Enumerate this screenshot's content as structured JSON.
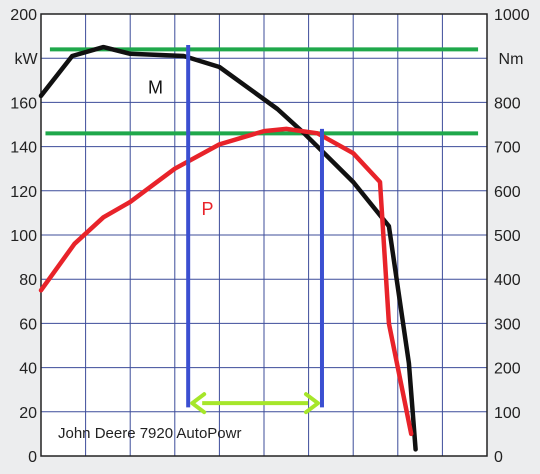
{
  "chart_data": {
    "type": "line",
    "axes": {
      "left": {
        "unit": "kW",
        "min": 0,
        "max": 200,
        "ticks": [
          0,
          20,
          40,
          60,
          80,
          100,
          120,
          140,
          160,
          200
        ]
      },
      "right": {
        "unit": "Nm",
        "min": 0,
        "max": 1000,
        "ticks": [
          0,
          100,
          200,
          300,
          400,
          500,
          600,
          700,
          800,
          1000
        ]
      }
    },
    "grid": true,
    "x_divisions": 10,
    "series": [
      {
        "name": "M",
        "axis": "right",
        "color": "#111111",
        "x": [
          0,
          0.7,
          1.4,
          2.0,
          3.2,
          4.0,
          5.3,
          5.9,
          7.0,
          7.8,
          8.25,
          8.4
        ],
        "values": [
          815,
          905,
          925,
          910,
          905,
          880,
          785,
          730,
          620,
          520,
          210,
          15
        ]
      },
      {
        "name": "P",
        "axis": "left",
        "color": "#e8232a",
        "x": [
          0,
          0.75,
          1.4,
          2.0,
          3.0,
          4.0,
          5.0,
          5.5,
          6.2,
          7.0,
          7.6,
          7.8,
          8.3
        ],
        "values": [
          75,
          96,
          108,
          115,
          130,
          141,
          147,
          148,
          146,
          137,
          124,
          60,
          10
        ]
      }
    ],
    "reference_lines": [
      {
        "color": "#1fa84b",
        "axis": "left",
        "value": 184,
        "x_from": 0.2,
        "x_to": 9.8
      },
      {
        "color": "#1fa84b",
        "axis": "left",
        "value": 146,
        "x_from": 0.1,
        "x_to": 9.8
      }
    ],
    "markers": [
      {
        "color": "#3b4fd1",
        "x": 3.3,
        "from_value": 22,
        "to_value": 186
      },
      {
        "color": "#3b4fd1",
        "x": 6.3,
        "from_value": 22,
        "to_value": 148
      }
    ],
    "range_arrow": {
      "color": "#a6e62a",
      "x_from": 3.3,
      "x_to": 6.3,
      "value": 23
    },
    "annotations": [
      {
        "text": "M",
        "color": "#111111",
        "x": 2.4,
        "value": 164
      },
      {
        "text": "P",
        "color": "#e8232a",
        "x": 3.6,
        "value": 109
      }
    ],
    "caption": "John Deere 7920 AutoPowr"
  }
}
